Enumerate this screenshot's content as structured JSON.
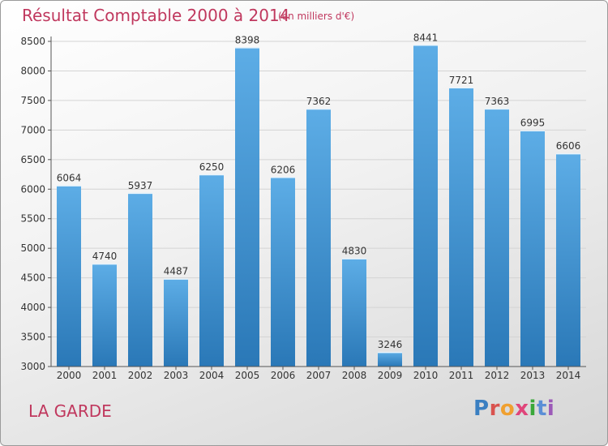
{
  "header": {
    "title": "Résultat Comptable 2000 à 2014",
    "subtitle": "(en milliers d'€)"
  },
  "footer": {
    "place": "LA GARDE",
    "brand": "Proxiti"
  },
  "colors": {
    "bar_light": "#5dade6",
    "bar_dark": "#2a78b7",
    "title": "#c0385e",
    "logo_letters": [
      "#3a7fc1",
      "#d9534f",
      "#f0a030",
      "#e0457a",
      "#3aa83a",
      "#5b8fd6",
      "#9c5ab8"
    ]
  },
  "chart_data": {
    "type": "bar",
    "categories": [
      "2000",
      "2001",
      "2002",
      "2003",
      "2004",
      "2005",
      "2006",
      "2007",
      "2008",
      "2009",
      "2010",
      "2011",
      "2012",
      "2013",
      "2014"
    ],
    "values": [
      6064,
      4740,
      5937,
      4487,
      6250,
      8398,
      6206,
      7362,
      4830,
      3246,
      8441,
      7721,
      7363,
      6995,
      6606
    ],
    "ylim": [
      3000,
      8500
    ],
    "yticks": [
      3000,
      3500,
      4000,
      4500,
      5000,
      5500,
      6000,
      6500,
      7000,
      7500,
      8000,
      8500
    ],
    "grid": true
  }
}
